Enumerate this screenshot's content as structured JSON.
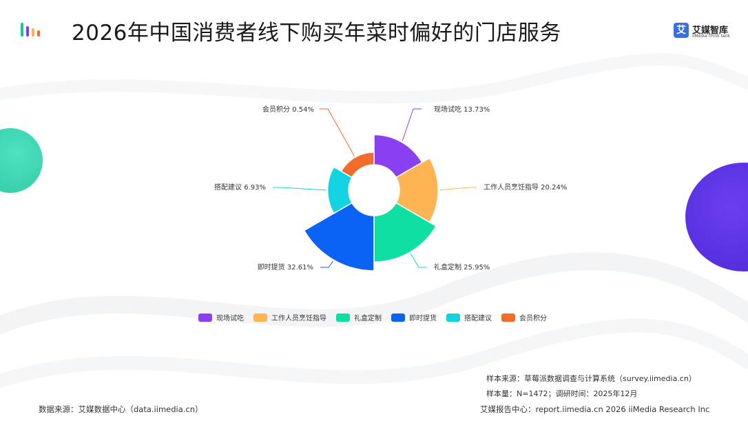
{
  "header": {
    "title": "2026年中国消费者线下购买年菜时偏好的门店服务",
    "brand_mark": "艾",
    "brand_name": "艾媒智库",
    "brand_sub": "iiMedia Think tank"
  },
  "chart_data": {
    "type": "pie",
    "variant": "nightingale-rose-donut",
    "title": "2026年中国消费者线下购买年菜时偏好的门店服务",
    "unit": "%",
    "categories": [
      "现场试吃",
      "工作人员烹饪指导",
      "礼盒定制",
      "即时提货",
      "搭配建议",
      "会员积分"
    ],
    "values": [
      13.73,
      20.24,
      25.95,
      32.61,
      6.93,
      0.54
    ],
    "labels": [
      "现场试吃 13.73%",
      "工作人员烹饪指导 20.24%",
      "礼盒定制 25.95%",
      "即时提货 32.61%",
      "搭配建议 6.93%",
      "会员积分 0.54%"
    ],
    "colors": [
      "#8a3ff0",
      "#ffb454",
      "#10dfa4",
      "#0a63f5",
      "#12d3e2",
      "#f26b2a"
    ],
    "legend_position": "bottom"
  },
  "sources": {
    "sample_source": "样本来源：草莓派数据调查与计算系统（survey.iimedia.cn）",
    "sample_size": "样本量：N=1472；调研时间：2025年12月"
  },
  "footer": {
    "data_source": "数据来源：艾媒数据中心（data.iimedia.cn）",
    "report_center": "艾媒报告中心：report.iimedia.cn   2026 iiMedia Research Inc"
  },
  "colors": {
    "deco_left": "#2ec9a2",
    "deco_right": "#4b27d6"
  }
}
